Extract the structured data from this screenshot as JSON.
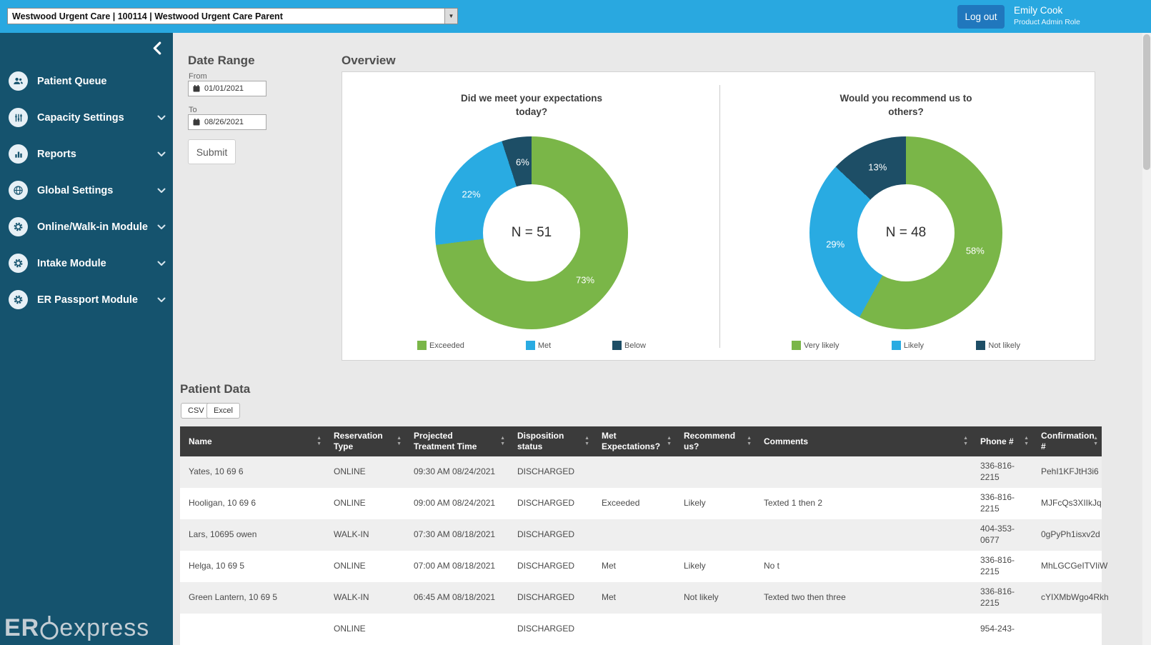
{
  "icons": {
    "dropdown_arrow": "▼",
    "sort_asc": "▲",
    "sort_desc": "▼"
  },
  "topbar": {
    "clinic_selector": "Westwood Urgent Care | 100114 | Westwood Urgent Care Parent",
    "logout_label": "Log out",
    "user_name": "Emily Cook",
    "user_role": "Product Admin Role"
  },
  "sidebar": {
    "items": [
      {
        "label": "Patient Queue",
        "icon": "users-icon",
        "expandable": false
      },
      {
        "label": "Capacity Settings",
        "icon": "sliders-icon",
        "expandable": true
      },
      {
        "label": "Reports",
        "icon": "bar-chart-icon",
        "expandable": true
      },
      {
        "label": "Global Settings",
        "icon": "globe-icon",
        "expandable": true
      },
      {
        "label": "Online/Walk-in Module",
        "icon": "gear-icon",
        "expandable": true
      },
      {
        "label": "Intake Module",
        "icon": "gear-icon",
        "expandable": true
      },
      {
        "label": "ER Passport Module",
        "icon": "gear-icon",
        "expandable": true
      }
    ],
    "brand": {
      "er": "ER",
      "express": "express"
    }
  },
  "filters": {
    "title": "Date Range",
    "from_label": "From",
    "from_value": "01/01/2021",
    "to_label": "To",
    "to_value": "08/26/2021",
    "submit_label": "Submit"
  },
  "overview": {
    "title": "Overview"
  },
  "chart_data": [
    {
      "type": "pie",
      "title": "Did we meet your expectations today?",
      "center_label": "N = 51",
      "labels": [
        "Exceeded",
        "Met",
        "Below"
      ],
      "values": [
        73,
        22,
        6
      ],
      "value_suffix": "%",
      "colors": [
        "#7ab648",
        "#29abe2",
        "#1d4e66"
      ],
      "legend_position": "bottom"
    },
    {
      "type": "pie",
      "title": "Would you recommend us to others?",
      "center_label": "N = 48",
      "labels": [
        "Very likely",
        "Likely",
        "Not likely"
      ],
      "values": [
        58,
        29,
        13
      ],
      "value_suffix": "%",
      "colors": [
        "#7ab648",
        "#29abe2",
        "#1d4e66"
      ],
      "legend_position": "bottom"
    }
  ],
  "patient_data": {
    "title": "Patient Data",
    "csv_label": "CSV",
    "excel_label": "Excel",
    "columns": [
      "Name",
      "Reservation Type",
      "Projected Treatment Time",
      "Disposition status",
      "Met Expectations?",
      "Recommend us?",
      "Comments",
      "Phone #",
      "Confirmation #"
    ],
    "rows": [
      {
        "name": "Yates, 10 69 6",
        "reservation_type": "ONLINE",
        "projected_time": "09:30 AM 08/24/2021",
        "disposition": "DISCHARGED",
        "met_expectations": "",
        "recommend": "",
        "comments": "",
        "phone": "336-816-2215",
        "confirmation": "PehI1KFJtH3i6"
      },
      {
        "name": "Hooligan, 10 69 6",
        "reservation_type": "ONLINE",
        "projected_time": "09:00 AM 08/24/2021",
        "disposition": "DISCHARGED",
        "met_expectations": "Exceeded",
        "recommend": "Likely",
        "comments": "Texted 1 then 2",
        "phone": "336-816-2215",
        "confirmation": "MJFcQs3XIIkJq"
      },
      {
        "name": "Lars, 10695 owen",
        "reservation_type": "WALK-IN",
        "projected_time": "07:30 AM 08/18/2021",
        "disposition": "DISCHARGED",
        "met_expectations": "",
        "recommend": "",
        "comments": "",
        "phone": "404-353-0677",
        "confirmation": "0gPyPh1isxv2d"
      },
      {
        "name": "Helga, 10 69 5",
        "reservation_type": "ONLINE",
        "projected_time": "07:00 AM 08/18/2021",
        "disposition": "DISCHARGED",
        "met_expectations": "Met",
        "recommend": "Likely",
        "comments": "No t",
        "phone": "336-816-2215",
        "confirmation": "MhLGCGeITVIiW"
      },
      {
        "name": "Green Lantern, 10 69 5",
        "reservation_type": "WALK-IN",
        "projected_time": "06:45 AM 08/18/2021",
        "disposition": "DISCHARGED",
        "met_expectations": "Met",
        "recommend": "Not likely",
        "comments": "Texted two then three",
        "phone": "336-816-2215",
        "confirmation": "cYIXMbWgo4Rkh"
      },
      {
        "name": "",
        "reservation_type": "ONLINE",
        "projected_time": "",
        "disposition": "DISCHARGED",
        "met_expectations": "",
        "recommend": "",
        "comments": "",
        "phone": "954-243-",
        "confirmation": ""
      }
    ]
  }
}
